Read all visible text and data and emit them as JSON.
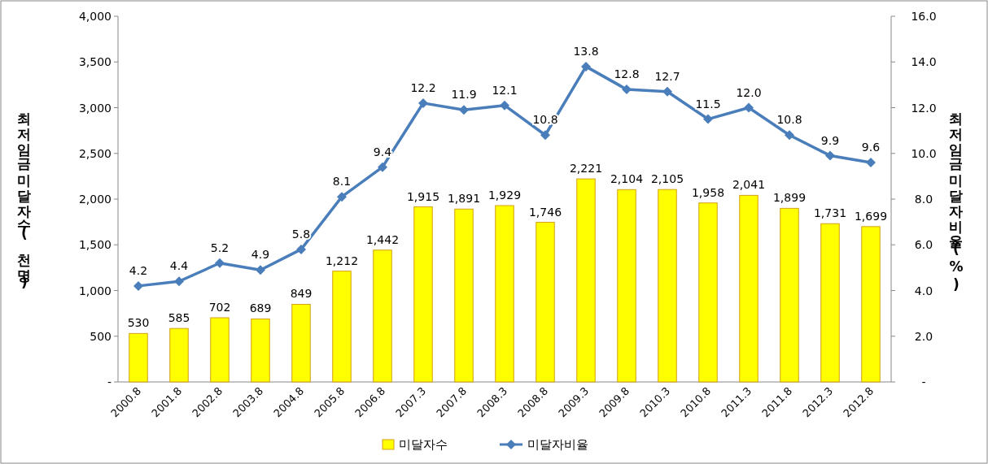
{
  "chart_data": {
    "type": "bar",
    "ylabel": "최저임금미달자수(천명)",
    "y2label": "최저임금미달자비율(%)",
    "legend": "bottom",
    "categories": [
      "2000.8",
      "2001.8",
      "2002.8",
      "2003.8",
      "2004.8",
      "2005.8",
      "2006.8",
      "2007.3",
      "2007.8",
      "2008.3",
      "2008.8",
      "2009.3",
      "2009.8",
      "2010.3",
      "2010.8",
      "2011.3",
      "2011.8",
      "2012.3",
      "2012.8"
    ],
    "series": [
      {
        "name": "미달자수",
        "color": "#ffff00",
        "values": [
          530,
          585,
          702,
          689,
          849,
          1212,
          1442,
          1915,
          1891,
          1929,
          1746,
          2221,
          2104,
          2105,
          1958,
          2041,
          1899,
          1731,
          1699
        ],
        "value_labels": [
          "530",
          "585",
          "702",
          "689",
          "849",
          "1,212",
          "1,442",
          "1,915",
          "1,891",
          "1,929",
          "1,746",
          "2,221",
          "2,104",
          "2,105",
          "1,958",
          "2,041",
          "1,899",
          "1,731",
          "1,699"
        ]
      },
      {
        "name": "미달자비율",
        "type": "line",
        "axis": "y2",
        "marker": "diamond",
        "color": "#4a7ebb",
        "values": [
          4.2,
          4.4,
          5.2,
          4.9,
          5.8,
          8.1,
          9.4,
          12.2,
          11.9,
          12.1,
          10.8,
          13.8,
          12.8,
          12.7,
          11.5,
          12.0,
          10.8,
          9.9,
          9.6
        ],
        "value_labels": [
          "4.2",
          "4.4",
          "5.2",
          "4.9",
          "5.8",
          "8.1",
          "9.4",
          "12.2",
          "11.9",
          "12.1",
          "10.8",
          "13.8",
          "12.8",
          "12.7",
          "11.5",
          "12.0",
          "10.8",
          "9.9",
          "9.6"
        ]
      }
    ],
    "ylim": [
      0,
      4000
    ],
    "yticks": [
      {
        "value": 0,
        "label": "-"
      },
      {
        "value": 500,
        "label": "500"
      },
      {
        "value": 1000,
        "label": "1,000"
      },
      {
        "value": 1500,
        "label": "1,500"
      },
      {
        "value": 2000,
        "label": "2,000"
      },
      {
        "value": 2500,
        "label": "2,500"
      },
      {
        "value": 3000,
        "label": "3,000"
      },
      {
        "value": 3500,
        "label": "3,500"
      },
      {
        "value": 4000,
        "label": "4,000"
      }
    ],
    "y2lim": [
      0,
      16
    ],
    "y2ticks": [
      {
        "value": 0,
        "label": "-"
      },
      {
        "value": 2,
        "label": "2.0"
      },
      {
        "value": 4,
        "label": "4.0"
      },
      {
        "value": 6,
        "label": "6.0"
      },
      {
        "value": 8,
        "label": "8.0"
      },
      {
        "value": 10,
        "label": "10.0"
      },
      {
        "value": 12,
        "label": "12.0"
      },
      {
        "value": 14,
        "label": "14.0"
      },
      {
        "value": 16,
        "label": "16.0"
      }
    ]
  }
}
